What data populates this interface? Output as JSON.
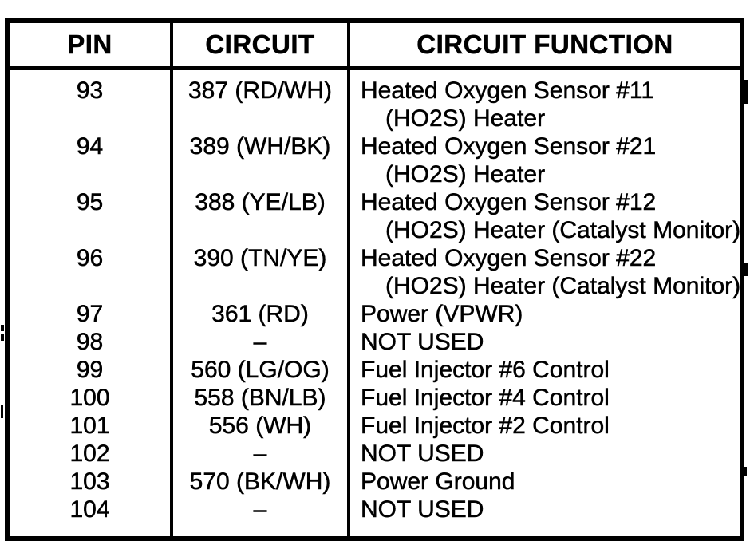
{
  "page": {
    "background_color": "#ffffff",
    "ink_color": "#000000",
    "kind": "scanned pin connector chart"
  },
  "table": {
    "columns": [
      "PIN",
      "CIRCUIT",
      "CIRCUIT FUNCTION"
    ],
    "not_used_dash": "–",
    "rows": [
      {
        "pin": "93",
        "circuit": "387 (RD/WH)",
        "function_lines": [
          "Heated Oxygen Sensor #11",
          "(HO2S) Heater"
        ]
      },
      {
        "pin": "94",
        "circuit": "389 (WH/BK)",
        "function_lines": [
          "Heated Oxygen Sensor #21",
          "(HO2S) Heater"
        ]
      },
      {
        "pin": "95",
        "circuit": "388 (YE/LB)",
        "function_lines": [
          "Heated Oxygen Sensor #12",
          "(HO2S) Heater (Catalyst Monitor)"
        ]
      },
      {
        "pin": "96",
        "circuit": "390 (TN/YE)",
        "function_lines": [
          "Heated Oxygen Sensor #22",
          "(HO2S) Heater (Catalyst Monitor)"
        ]
      },
      {
        "pin": "97",
        "circuit": "361 (RD)",
        "function_lines": [
          "Power (VPWR)"
        ]
      },
      {
        "pin": "98",
        "circuit": "–",
        "function_lines": [
          "NOT USED"
        ]
      },
      {
        "pin": "99",
        "circuit": "560 (LG/OG)",
        "function_lines": [
          "Fuel Injector #6 Control"
        ]
      },
      {
        "pin": "100",
        "circuit": "558 (BN/LB)",
        "function_lines": [
          "Fuel Injector #4 Control"
        ]
      },
      {
        "pin": "101",
        "circuit": "556 (WH)",
        "function_lines": [
          "Fuel Injector #2 Control"
        ]
      },
      {
        "pin": "102",
        "circuit": "–",
        "function_lines": [
          "NOT USED"
        ]
      },
      {
        "pin": "103",
        "circuit": "570 (BK/WH)",
        "function_lines": [
          "Power Ground"
        ]
      },
      {
        "pin": "104",
        "circuit": "–",
        "function_lines": [
          "NOT USED"
        ]
      }
    ]
  }
}
